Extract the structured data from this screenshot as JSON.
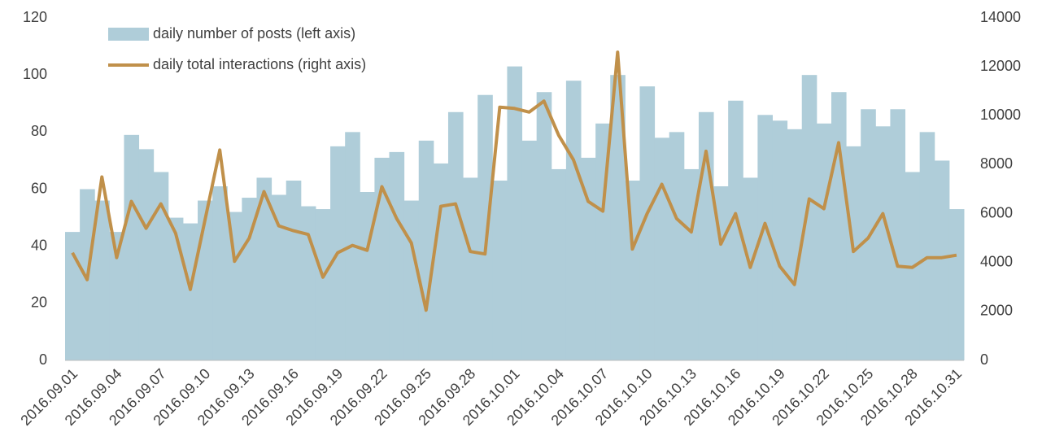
{
  "chart_data": {
    "type": "bar-line",
    "categories": [
      "2016.09.01",
      null,
      null,
      "2016.09.04",
      null,
      null,
      "2016.09.07",
      null,
      null,
      "2016.09.10",
      null,
      null,
      "2016.09.13",
      null,
      null,
      "2016.09.16",
      null,
      null,
      "2016.09.19",
      null,
      null,
      "2016.09.22",
      null,
      null,
      "2016.09.25",
      null,
      null,
      "2016.09.28",
      null,
      null,
      "2016.10.01",
      null,
      null,
      "2016.10.04",
      null,
      null,
      "2016.10.07",
      null,
      null,
      "2016.10.10",
      null,
      null,
      "2016.10.13",
      null,
      null,
      "2016.10.16",
      null,
      null,
      "2016.10.19",
      null,
      null,
      "2016.10.22",
      null,
      null,
      "2016.10.25",
      null,
      null,
      "2016.10.28",
      null,
      null,
      "2016.10.31"
    ],
    "series": [
      {
        "name": "daily number of posts (left axis)",
        "kind": "bar",
        "color": "#afcdd9",
        "values": [
          45,
          60,
          56,
          45,
          79,
          74,
          66,
          50,
          48,
          56,
          61,
          52,
          57,
          64,
          58,
          63,
          54,
          53,
          75,
          80,
          59,
          71,
          73,
          56,
          77,
          69,
          87,
          64,
          93,
          63,
          103,
          77,
          94,
          67,
          98,
          71,
          83,
          100,
          63,
          96,
          78,
          80,
          67,
          87,
          61,
          91,
          64,
          86,
          84,
          81,
          100,
          83,
          94,
          75,
          88,
          82,
          88,
          66,
          80,
          70,
          53
        ]
      },
      {
        "name": "daily total interactions (right axis)",
        "kind": "line",
        "axis": "y2",
        "color": "#c0904a",
        "values": [
          4400,
          3300,
          7500,
          4200,
          6500,
          5400,
          6400,
          5200,
          2900,
          5750,
          8600,
          4050,
          5000,
          6900,
          5500,
          5300,
          5150,
          3400,
          4400,
          4700,
          4500,
          7100,
          5800,
          4800,
          2050,
          6300,
          6400,
          4450,
          4350,
          10350,
          10300,
          10150,
          10600,
          9200,
          8200,
          6500,
          6100,
          12600,
          4550,
          6000,
          7200,
          5800,
          5250,
          8550,
          4750,
          6000,
          3800,
          5600,
          3850,
          3100,
          6600,
          6200,
          8900,
          4450,
          5000,
          6000,
          3850,
          3800,
          4200,
          4200,
          4300
        ]
      }
    ],
    "ylim": [
      0,
      120
    ],
    "yticks": [
      0,
      20,
      40,
      60,
      80,
      100,
      120
    ],
    "y2lim": [
      0,
      14000
    ],
    "y2ticks": [
      0,
      2000,
      4000,
      6000,
      8000,
      10000,
      12000,
      14000
    ],
    "legend": "top-left"
  }
}
